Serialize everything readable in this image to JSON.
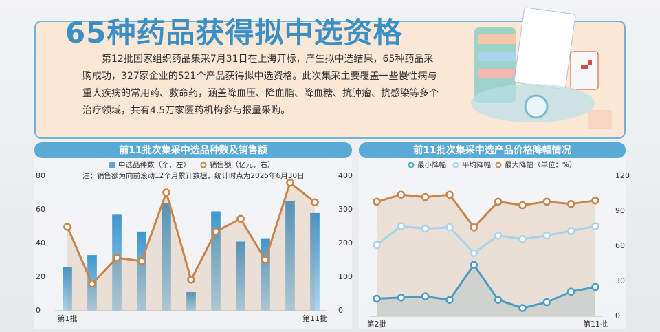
{
  "header": {
    "title": "65种药品获得拟中选资格",
    "body": "第12批国家组织药品集采7月31日在上海开标，产生拟中选结果，65种药品采购成功，327家企业的521个产品获得拟中选资格。此次集采主要覆盖一些慢性病与重大疾病的常用药、救命药，涵盖降血压、降血脂、降血糖、抗肿瘤、抗感染等多个治疗领域，共有4.5万家医药机构参与报量采购。"
  },
  "chart_data": [
    {
      "type": "bar",
      "title": "前11批次集采中选品种数及销售额",
      "note": "注：销售额为向前滚动12个月累计数据，统计时点为2025年6月30日",
      "categories": [
        "第1批",
        null,
        null,
        null,
        null,
        null,
        null,
        null,
        null,
        null,
        "第11批"
      ],
      "series": [
        {
          "name": "中选品种数（个，左）",
          "color": "#5aaad8",
          "values": [
            26,
            33,
            57,
            47,
            64,
            11,
            59,
            41,
            43,
            65,
            58
          ]
        },
        {
          "name": "销售额（亿元，右）",
          "color": "#c8844c",
          "type": "line",
          "axis": "y2",
          "values": [
            249,
            80,
            157,
            147,
            351,
            92,
            235,
            273,
            151,
            380,
            322
          ]
        }
      ],
      "ylim": [
        0,
        80
      ],
      "yticks": [
        0,
        20,
        40,
        60,
        80
      ],
      "y2lim": [
        0,
        400
      ],
      "y2ticks": [
        0,
        100,
        200,
        300,
        400
      ]
    },
    {
      "type": "line",
      "title": "前11批次集采中选产品价格降幅情况",
      "categories": [
        "第2批",
        null,
        null,
        null,
        null,
        null,
        null,
        null,
        null,
        "第11批"
      ],
      "series": [
        {
          "name": "最小降幅",
          "color": "#4a9cc4",
          "values": [
            15,
            16,
            17,
            14,
            44,
            14,
            7,
            12,
            21,
            25
          ]
        },
        {
          "name": "平均降幅",
          "color": "#a8d4ea",
          "values": [
            61,
            77,
            75,
            76,
            54,
            69,
            66,
            69,
            73,
            77
          ]
        },
        {
          "name": "最大降幅（单位：%）",
          "color": "#c8844c",
          "values": [
            98,
            104,
            102,
            104,
            76,
            98,
            95,
            98,
            96,
            99
          ]
        }
      ],
      "ylim": [
        0,
        120
      ],
      "yticks": [
        0,
        30,
        60,
        90,
        120
      ]
    }
  ]
}
